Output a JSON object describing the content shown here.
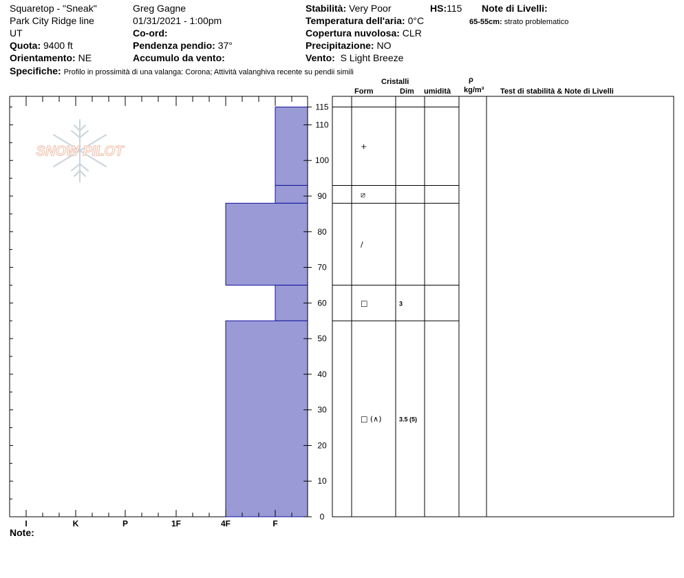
{
  "header": {
    "site": "Squaretop - \"Sneak\"",
    "location": "Park City Ridge line",
    "state": "UT",
    "elevation_label": "Quota:",
    "elevation_value": "9400 ft",
    "aspect_label": "Orientamento:",
    "aspect_value": "NE",
    "observer": "Greg Gagne",
    "datetime": "01/31/2021 - 1:00pm",
    "coord_label": "Co-ord:",
    "slope_label": "Pendenza pendio:",
    "slope_value": "37°",
    "wind_loading_label": "Accumulo da vento:",
    "stability_label": "Stabilità:",
    "stability_value": "Very Poor",
    "hs_label": "HS:",
    "hs_value": "115",
    "air_temp_label": "Temperatura dell'aria:",
    "air_temp_value": "0°C",
    "sky_label": "Copertura nuvolosa:",
    "sky_value": "CLR",
    "precip_label": "Precipitazione:",
    "precip_value": "NO",
    "wind_label": "Vento:",
    "wind_value": "S Light Breeze",
    "layer_notes_label": "Note di Livelli:",
    "layer_note_range": "65-55cm:",
    "layer_note_text": "strato problematico",
    "specifics_label": "Specifiche:",
    "specifics_text": "Profilo in prossimità di una valanga: Corona;  Attività valanghiva recente su pendii simili",
    "notes_label": "Note:"
  },
  "logo": {
    "text": "SNOW PILOT",
    "icon": "snowflake-icon"
  },
  "columns": {
    "crystals": "Cristalli",
    "form": "Form",
    "size": "Dim",
    "moisture": "umidità",
    "density_symbol": "ρ",
    "density_unit": "kg/m³",
    "tests": "Test di stabilità & Note di Livelli"
  },
  "colors": {
    "hardness_fill": "#9a9ad6",
    "hardness_stroke": "#1010a0"
  },
  "chart_data": {
    "type": "bar",
    "y_axis": {
      "label": "",
      "range": [
        0,
        115
      ],
      "ticks": [
        0,
        10,
        20,
        30,
        40,
        50,
        60,
        70,
        80,
        90,
        100,
        110
      ],
      "top_label": "115"
    },
    "x_axis": {
      "categories": [
        "I",
        "K",
        "P",
        "1F",
        "4F",
        "F"
      ],
      "direction": "hardness decreasing left to right"
    },
    "layers": [
      {
        "top": 115,
        "bottom": 93,
        "hardness": "F",
        "form": "+",
        "size": ""
      },
      {
        "top": 93,
        "bottom": 88,
        "hardness": "F",
        "form": "⧄",
        "size": ""
      },
      {
        "top": 88,
        "bottom": 65,
        "hardness": "4F",
        "form": "/",
        "size": ""
      },
      {
        "top": 65,
        "bottom": 55,
        "hardness": "F",
        "form": "□",
        "size": "3"
      },
      {
        "top": 55,
        "bottom": 0,
        "hardness": "4F",
        "form": "□ (∧)",
        "size": "3.5 (5)"
      }
    ]
  }
}
